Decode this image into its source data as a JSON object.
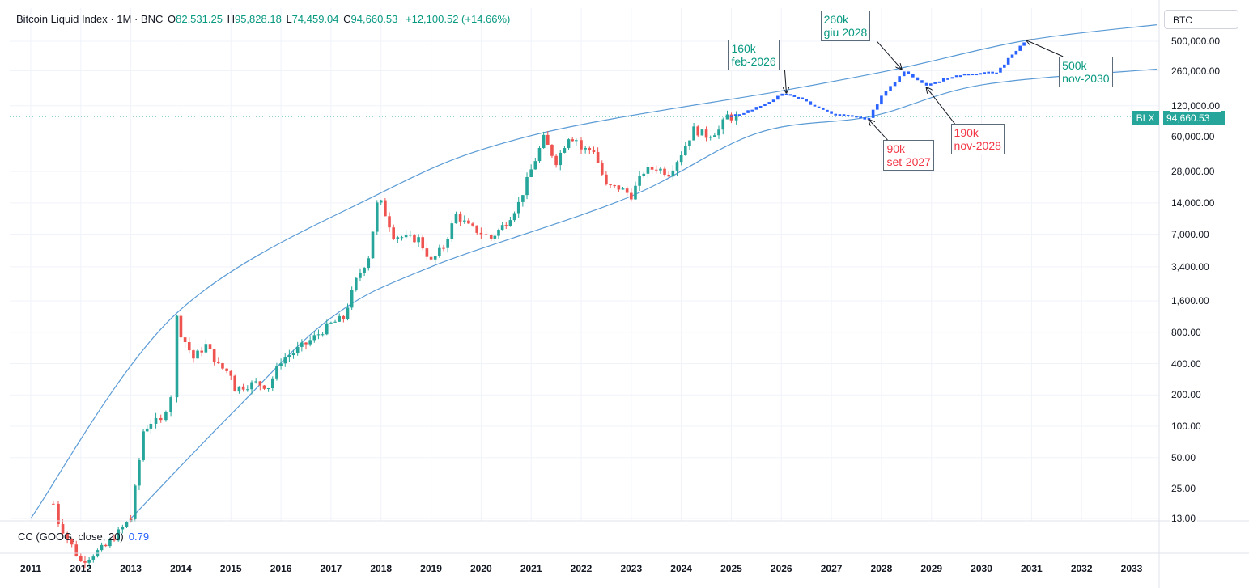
{
  "header": {
    "title": "Bitcoin Liquid Index · 1M · BNC",
    "o_label": "O",
    "o_value": "82,531.25",
    "h_label": "H",
    "h_value": "95,828.18",
    "l_label": "L",
    "l_value": "74,459.04",
    "c_label": "C",
    "c_value": "94,660.53",
    "change": "+12,100.52 (+14.66%)"
  },
  "symbol_button": "BTC",
  "price_tag": {
    "symbol": "BLX",
    "price": "94,660.53"
  },
  "indicator": {
    "label": "CC (GOOG, close, 20)",
    "value": "0.79"
  },
  "colors": {
    "up": "#26a69a",
    "down": "#ef5350",
    "projection": "#2962ff",
    "channel": "#5b9bd5",
    "grid": "#f0f3fa",
    "annot_green": "#089981",
    "annot_red": "#f23645"
  },
  "chart_data": {
    "type": "candlestick",
    "y_scale": "log",
    "y_ticks": [
      {
        "label": "500,000.00",
        "value": 500000
      },
      {
        "label": "260,000.00",
        "value": 260000
      },
      {
        "label": "120,000.00",
        "value": 120000
      },
      {
        "label": "60,000.00",
        "value": 60000
      },
      {
        "label": "28,000.00",
        "value": 28000
      },
      {
        "label": "14,000.00",
        "value": 14000
      },
      {
        "label": "7,000.00",
        "value": 7000
      },
      {
        "label": "3,400.00",
        "value": 3400
      },
      {
        "label": "1,600.00",
        "value": 1600
      },
      {
        "label": "800.00",
        "value": 800
      },
      {
        "label": "400.00",
        "value": 400
      },
      {
        "label": "200.00",
        "value": 200
      },
      {
        "label": "100.00",
        "value": 100
      },
      {
        "label": "50.00",
        "value": 50
      },
      {
        "label": "25.00",
        "value": 25
      },
      {
        "label": "13.00",
        "value": 13
      }
    ],
    "x_ticks": [
      "2011",
      "2012",
      "2013",
      "2014",
      "2015",
      "2016",
      "2017",
      "2018",
      "2019",
      "2020",
      "2021",
      "2022",
      "2023",
      "2024",
      "2025",
      "2026",
      "2027",
      "2028",
      "2029",
      "2030",
      "2031",
      "2032",
      "2033"
    ],
    "last_price": 94660.53,
    "historical_monthly_close": [
      {
        "year": 2011,
        "points": [
          [
            0.45,
            18
          ],
          [
            0.55,
            12
          ]
        ]
      },
      {
        "year": 2012,
        "points": [
          [
            0.0,
            5
          ],
          [
            0.5,
            7
          ],
          [
            1.0,
            13
          ]
        ]
      },
      {
        "year": 2013,
        "points": [
          [
            0.0,
            13
          ],
          [
            0.25,
            90
          ],
          [
            0.4,
            110
          ],
          [
            0.6,
            110
          ],
          [
            0.8,
            200
          ],
          [
            0.92,
            1100
          ],
          [
            1.0,
            780
          ]
        ]
      },
      {
        "year": 2014,
        "points": [
          [
            0.25,
            450
          ],
          [
            0.5,
            600
          ],
          [
            0.75,
            380
          ],
          [
            1.0,
            320
          ]
        ]
      },
      {
        "year": 2015,
        "points": [
          [
            0.08,
            230
          ],
          [
            0.5,
            260
          ],
          [
            0.75,
            240
          ],
          [
            1.0,
            430
          ]
        ]
      },
      {
        "year": 2016,
        "points": [
          [
            0.5,
            620
          ],
          [
            1.0,
            960
          ]
        ]
      },
      {
        "year": 2017,
        "points": [
          [
            0.25,
            1100
          ],
          [
            0.5,
            2500
          ],
          [
            0.75,
            4300
          ],
          [
            0.92,
            13500
          ],
          [
            1.0,
            13800
          ]
        ]
      },
      {
        "year": 2018,
        "points": [
          [
            0.25,
            6900
          ],
          [
            0.5,
            6400
          ],
          [
            0.75,
            6300
          ],
          [
            1.0,
            3800
          ]
        ]
      },
      {
        "year": 2019,
        "points": [
          [
            0.25,
            5300
          ],
          [
            0.5,
            10800
          ],
          [
            0.75,
            8300
          ],
          [
            1.0,
            7200
          ]
        ]
      },
      {
        "year": 2020,
        "points": [
          [
            0.2,
            6400
          ],
          [
            0.5,
            9100
          ],
          [
            0.75,
            13800
          ],
          [
            1.0,
            29000
          ]
        ]
      },
      {
        "year": 2021,
        "points": [
          [
            0.25,
            58000
          ],
          [
            0.5,
            35000
          ],
          [
            0.75,
            61000
          ],
          [
            0.9,
            57000
          ],
          [
            1.0,
            46000
          ]
        ]
      },
      {
        "year": 2022,
        "points": [
          [
            0.25,
            45000
          ],
          [
            0.5,
            20000
          ],
          [
            0.75,
            19500
          ],
          [
            1.0,
            16500
          ]
        ]
      },
      {
        "year": 2023,
        "points": [
          [
            0.25,
            28000
          ],
          [
            0.5,
            30500
          ],
          [
            0.75,
            27000
          ],
          [
            1.0,
            42000
          ]
        ]
      },
      {
        "year": 2024,
        "points": [
          [
            0.25,
            71000
          ],
          [
            0.5,
            62000
          ],
          [
            0.75,
            70000
          ],
          [
            0.92,
            96000
          ],
          [
            1.0,
            93000
          ]
        ]
      },
      {
        "year": 2025,
        "points": [
          [
            0.1,
            94660.53
          ]
        ]
      }
    ],
    "projection": [
      {
        "year": 2025,
        "value": 94000
      },
      {
        "year": 2025.5,
        "value": 115000
      },
      {
        "year": 2026.1,
        "value": 160000
      },
      {
        "year": 2026.5,
        "value": 130000
      },
      {
        "year": 2027.0,
        "value": 100000
      },
      {
        "year": 2027.75,
        "value": 90000
      },
      {
        "year": 2028.0,
        "value": 150000
      },
      {
        "year": 2028.45,
        "value": 260000
      },
      {
        "year": 2028.9,
        "value": 190000
      },
      {
        "year": 2029.5,
        "value": 240000
      },
      {
        "year": 2030.3,
        "value": 250000
      },
      {
        "year": 2030.85,
        "value": 500000
      }
    ],
    "channel_lines": [
      {
        "name": "upper",
        "points": [
          [
            2011.0,
            13
          ],
          [
            2013.9,
            1200
          ],
          [
            2017.95,
            17000
          ],
          [
            2021.0,
            62000
          ],
          [
            2026.1,
            170000
          ],
          [
            2028.3,
            270000
          ],
          [
            2030.9,
            510000
          ],
          [
            2033.5,
            720000
          ]
        ]
      },
      {
        "name": "lower",
        "points": [
          [
            2013.0,
            13
          ],
          [
            2015.0,
            130
          ],
          [
            2017.0,
            1100
          ],
          [
            2019.0,
            3400
          ],
          [
            2022.9,
            15500
          ],
          [
            2025.5,
            65000
          ],
          [
            2027.8,
            95000
          ],
          [
            2030.0,
            190000
          ],
          [
            2033.5,
            270000
          ]
        ]
      }
    ],
    "annotations": [
      {
        "line1": "160k",
        "line2": "feb-2026",
        "color": "green",
        "target_year": 2026.1,
        "target_value": 160000
      },
      {
        "line1": "260k",
        "line2": "giu 2028",
        "color": "green",
        "target_year": 2028.4,
        "target_value": 270000
      },
      {
        "line1": "500k",
        "line2": "nov-2030",
        "color": "green",
        "target_year": 2030.9,
        "target_value": 510000
      },
      {
        "line1": "190k",
        "line2": "nov-2028",
        "color": "red",
        "target_year": 2028.9,
        "target_value": 180000
      },
      {
        "line1": "90k",
        "line2": "set-2027",
        "color": "red",
        "target_year": 2027.75,
        "target_value": 88000
      }
    ]
  }
}
